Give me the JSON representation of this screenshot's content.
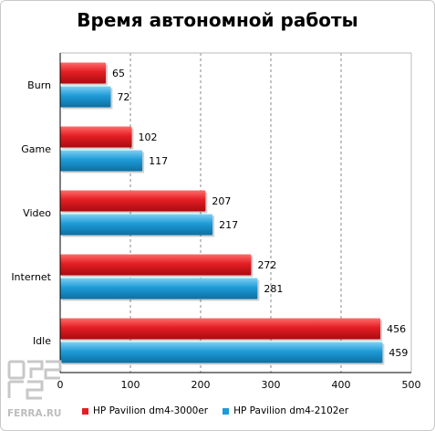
{
  "chart_data": {
    "type": "bar",
    "orientation": "horizontal",
    "title": "Время автономной работы",
    "categories": [
      "Burn",
      "Game",
      "Video",
      "Internet",
      "Idle"
    ],
    "series": [
      {
        "name": "HP Pavilion dm4-3000er",
        "values": [
          65,
          102,
          207,
          272,
          456
        ],
        "color": "#e31e24"
      },
      {
        "name": "HP Pavilion dm4-2102er",
        "values": [
          72,
          117,
          217,
          281,
          459
        ],
        "color": "#1e9bd7"
      }
    ],
    "xlim": [
      0,
      500
    ],
    "xticks": [
      0,
      100,
      200,
      300,
      400,
      500
    ],
    "grid": "vertical-dashed",
    "legend": "bottom"
  },
  "watermark": {
    "text": "FERRA.RU"
  }
}
